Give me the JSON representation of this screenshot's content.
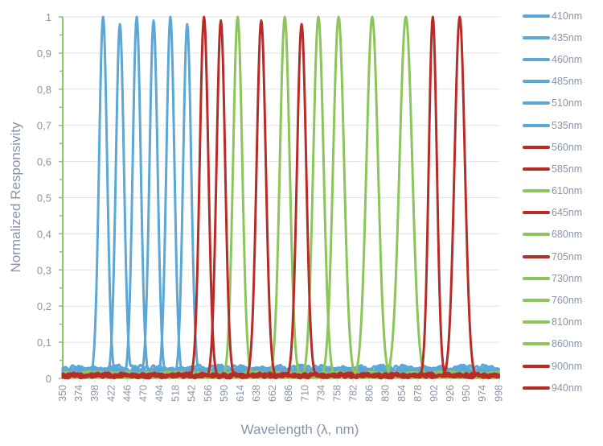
{
  "chart_data": {
    "type": "line",
    "title": "",
    "xlabel": "Wavelength (λ, nm)",
    "ylabel": "Normalized Responsivity",
    "xlim": [
      350,
      1000
    ],
    "ylim": [
      0,
      1
    ],
    "x_ticks": [
      350,
      374,
      398,
      422,
      446,
      470,
      494,
      518,
      542,
      566,
      590,
      614,
      638,
      662,
      686,
      710,
      734,
      758,
      782,
      806,
      830,
      854,
      878,
      902,
      926,
      950,
      974,
      998
    ],
    "y_ticks": [
      "0",
      "0,1",
      "0,2",
      "0,3",
      "0,4",
      "0,5",
      "0,6",
      "0,7",
      "0,8",
      "0,9",
      "1"
    ],
    "y_tick_values": [
      0,
      0.1,
      0.2,
      0.3,
      0.4,
      0.5,
      0.6,
      0.7,
      0.8,
      0.9,
      1
    ],
    "grid": "horizontal",
    "legend_position": "right",
    "colors": {
      "blue": "#5BA7D6",
      "red": "#B82C27",
      "green": "#8CC55A",
      "axis": "#8CC55A",
      "grid": "#E3E3E3",
      "text": "#8A94A6"
    },
    "series": [
      {
        "name": "410nm",
        "color": "blue",
        "center": 410,
        "peak": 1.0,
        "fwhm": 14
      },
      {
        "name": "435nm",
        "color": "blue",
        "center": 435,
        "peak": 0.98,
        "fwhm": 14
      },
      {
        "name": "460nm",
        "color": "blue",
        "center": 460,
        "peak": 1.0,
        "fwhm": 14
      },
      {
        "name": "485nm",
        "color": "blue",
        "center": 485,
        "peak": 0.99,
        "fwhm": 14
      },
      {
        "name": "510nm",
        "color": "blue",
        "center": 510,
        "peak": 1.0,
        "fwhm": 14
      },
      {
        "name": "535nm",
        "color": "blue",
        "center": 535,
        "peak": 0.98,
        "fwhm": 14
      },
      {
        "name": "560nm",
        "color": "red",
        "center": 560,
        "peak": 1.0,
        "fwhm": 15
      },
      {
        "name": "585nm",
        "color": "red",
        "center": 585,
        "peak": 0.99,
        "fwhm": 15
      },
      {
        "name": "610nm",
        "color": "green",
        "center": 610,
        "peak": 1.0,
        "fwhm": 16
      },
      {
        "name": "645nm",
        "color": "red",
        "center": 645,
        "peak": 0.99,
        "fwhm": 16
      },
      {
        "name": "680nm",
        "color": "green",
        "center": 680,
        "peak": 1.0,
        "fwhm": 17
      },
      {
        "name": "705nm",
        "color": "red",
        "center": 705,
        "peak": 0.98,
        "fwhm": 16
      },
      {
        "name": "730nm",
        "color": "green",
        "center": 730,
        "peak": 1.0,
        "fwhm": 18
      },
      {
        "name": "760nm",
        "color": "green",
        "center": 760,
        "peak": 1.0,
        "fwhm": 19
      },
      {
        "name": "810nm",
        "color": "green",
        "center": 810,
        "peak": 1.0,
        "fwhm": 20
      },
      {
        "name": "860nm",
        "color": "green",
        "center": 860,
        "peak": 1.0,
        "fwhm": 22
      },
      {
        "name": "900nm",
        "color": "red",
        "center": 900,
        "peak": 1.0,
        "fwhm": 14
      },
      {
        "name": "940nm",
        "color": "red",
        "center": 940,
        "peak": 1.0,
        "fwhm": 18
      }
    ]
  }
}
